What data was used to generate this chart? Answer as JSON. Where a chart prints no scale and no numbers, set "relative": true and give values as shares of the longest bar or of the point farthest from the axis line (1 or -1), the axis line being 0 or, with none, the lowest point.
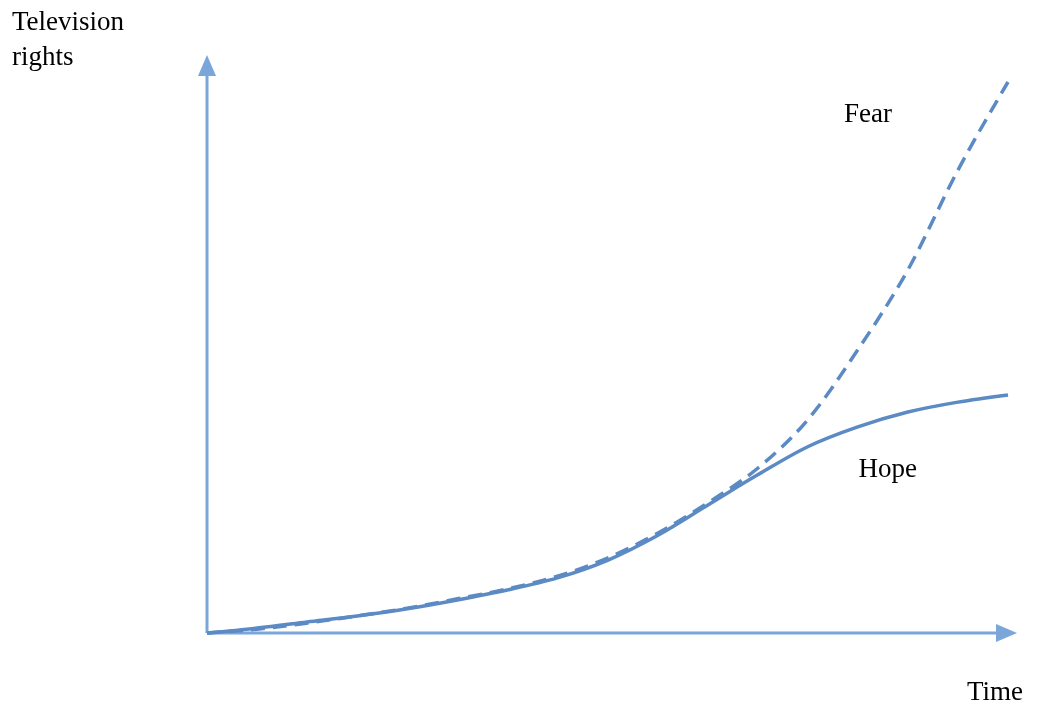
{
  "chart_data": {
    "type": "line",
    "relative": true,
    "xlabel": "Time",
    "ylabel": "Television rights",
    "categories": [
      null,
      null,
      null,
      null,
      null,
      null,
      null,
      null,
      null,
      null,
      null,
      null,
      null,
      null,
      null,
      null,
      null
    ],
    "marker": "none",
    "series": [
      {
        "name": "Fear",
        "color": "#5b8ac4",
        "line_style": "dashed",
        "values": [
          0,
          0.007,
          0.018,
          0.031,
          0.045,
          0.062,
          0.08,
          0.103,
          0.136,
          0.181,
          0.236,
          0.299,
          0.387,
          0.514,
          0.659,
          0.84,
          1
        ]
      },
      {
        "name": "Hope",
        "color": "#5b8ac4",
        "line_style": "solid",
        "values": [
          0,
          0.009,
          0.02,
          0.031,
          0.044,
          0.06,
          0.078,
          0.1,
          0.132,
          0.177,
          0.232,
          0.287,
          0.338,
          0.374,
          0.401,
          0.419,
          0.432
        ]
      }
    ]
  }
}
